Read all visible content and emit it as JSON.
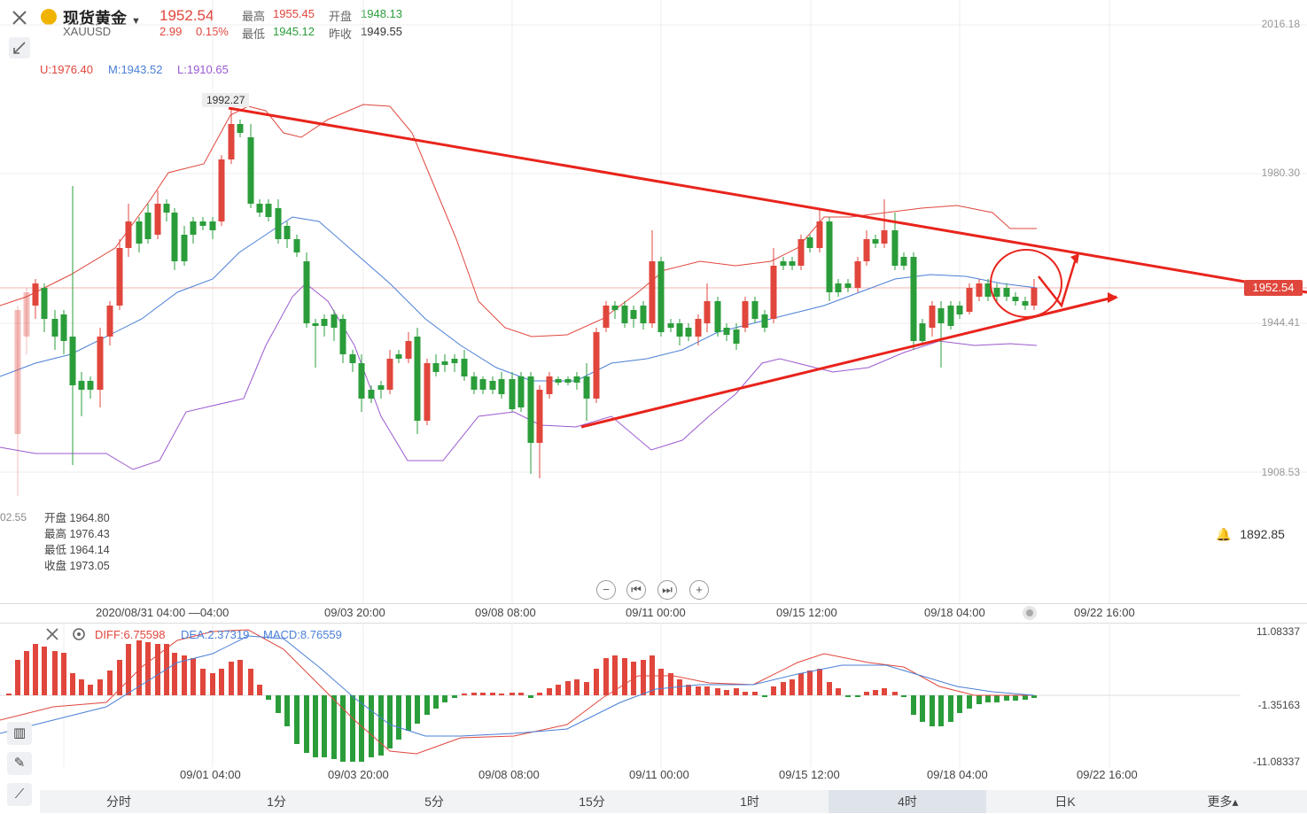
{
  "header": {
    "name": "现货黄金",
    "code": "XAUUSD",
    "price": "1952.54",
    "change": "2.99",
    "change_pct": "0.15%",
    "high_label": "最高",
    "high": "1955.45",
    "open_label": "开盘",
    "open": "1948.13",
    "low_label": "最低",
    "low": "1945.12",
    "prev_label": "昨收",
    "prev": "1949.55"
  },
  "boll": {
    "u": "U:1976.40",
    "m": "M:1943.52",
    "l": "L:1910.65"
  },
  "chart_labels": {
    "peak": "1992.27",
    "price_tag": "1952.54",
    "alarm_price": "1892.85",
    "left_cut": "02.55"
  },
  "price_axis": [
    "2016.18",
    "1980.30",
    "1944.41",
    "1908.53"
  ],
  "ohlc_tooltip": {
    "open_label": "开盘",
    "open": "1964.80",
    "high_label": "最高",
    "high": "1976.43",
    "low_label": "最低",
    "low": "1964.14",
    "close_label": "收盘",
    "close": "1973.05"
  },
  "time_axis_top": [
    "2020/08/31 04:00 —04:00",
    "09/03 20:00",
    "09/08 08:00",
    "09/11 00:00",
    "09/15 12:00",
    "09/18 04:00",
    "09/22 16:00"
  ],
  "time_axis_bottom": [
    "09/01 04:00",
    "09/03 20:00",
    "09/08 08:00",
    "09/11 00:00",
    "09/15 12:00",
    "09/18 04:00",
    "09/22 16:00"
  ],
  "macd": {
    "diff": "DIFF:6.75598",
    "dea": "DEA:2.37319",
    "macd": "MACD:8.76559",
    "axis": [
      "11.08337",
      "-1.35163",
      "-11.08337"
    ]
  },
  "timeframes": [
    "分时",
    "1分",
    "5分",
    "15分",
    "1时",
    "4时",
    "日K",
    "更多▴"
  ],
  "active_timeframe": "4时",
  "colors": {
    "up": "#e0463c",
    "down": "#2a9d3a",
    "mid": "#4a7fd6",
    "lower": "#9b59d0",
    "upper": "#e0463c"
  }
}
